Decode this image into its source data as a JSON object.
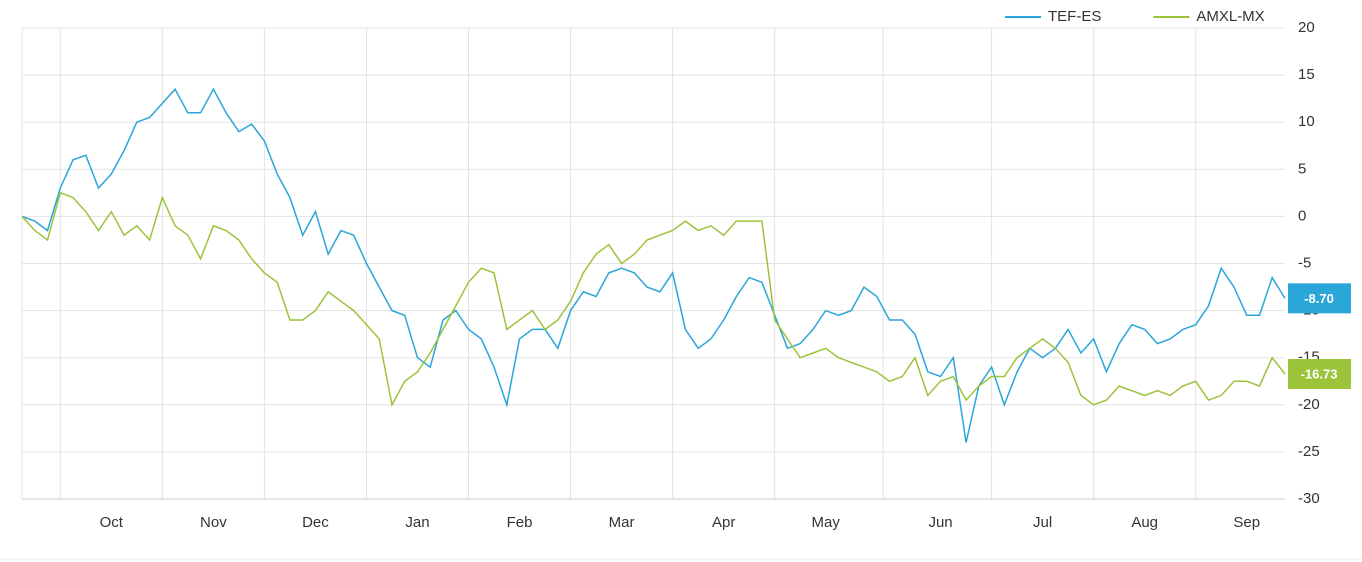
{
  "chart_data": {
    "type": "line",
    "categories": [
      null,
      null,
      null,
      null,
      null,
      null,
      null,
      "Oct",
      null,
      null,
      null,
      null,
      null,
      null,
      null,
      "Nov",
      null,
      null,
      null,
      null,
      null,
      null,
      null,
      "Dec",
      null,
      null,
      null,
      null,
      null,
      null,
      null,
      "Jan",
      null,
      null,
      null,
      null,
      null,
      null,
      null,
      "Feb",
      null,
      null,
      null,
      null,
      null,
      null,
      null,
      "Mar",
      null,
      null,
      null,
      null,
      null,
      null,
      null,
      "Apr",
      null,
      null,
      null,
      null,
      null,
      null,
      null,
      "May",
      null,
      null,
      null,
      null,
      null,
      null,
      null,
      null,
      "Jun",
      null,
      null,
      null,
      null,
      null,
      null,
      null,
      "Jul",
      null,
      null,
      null,
      null,
      null,
      null,
      null,
      "Aug",
      null,
      null,
      null,
      null,
      null,
      null,
      null,
      "Sep",
      null,
      null,
      null
    ],
    "series": [
      {
        "name": "TEF-ES",
        "color": "#2ba6d9",
        "values": [
          0,
          -0.5,
          -1.5,
          3,
          6,
          6.5,
          3,
          4.5,
          7,
          10,
          10.5,
          12,
          13.5,
          11,
          11,
          13.5,
          11,
          9,
          9.8,
          8,
          4.5,
          2,
          -2,
          0.5,
          -4,
          -1.5,
          -2,
          -5,
          -7.5,
          -10,
          -10.5,
          -15,
          -16,
          -11,
          -10,
          -12,
          -13,
          -16,
          -20,
          -13,
          -12,
          -12,
          -14,
          -10,
          -8,
          -8.5,
          -6,
          -5.5,
          -6,
          -7.5,
          -8,
          -6,
          -12,
          -14,
          -13,
          -11,
          -8.5,
          -6.5,
          -7,
          -10.5,
          -14,
          -13.5,
          -12,
          -10,
          -10.5,
          -10,
          -7.5,
          -8.5,
          -11,
          -11,
          -12.5,
          -16.5,
          -17,
          -15,
          -24,
          -18,
          -16,
          -20,
          -16.5,
          -14,
          -15,
          -14,
          -12,
          -14.5,
          -13,
          -16.5,
          -13.5,
          -11.5,
          -12,
          -13.5,
          -13,
          -12,
          -11.5,
          -9.5,
          -5.5,
          -7.5,
          -10.5,
          -10.5,
          -6.5,
          -8.7
        ],
        "value_labels": [
          null,
          null,
          null,
          null,
          null,
          null,
          null,
          null,
          null,
          null,
          null,
          null,
          null,
          null,
          null,
          null,
          null,
          null,
          null,
          null,
          null,
          null,
          null,
          null,
          null,
          null,
          null,
          null,
          null,
          null,
          null,
          null,
          null,
          null,
          null,
          null,
          null,
          null,
          null,
          null,
          null,
          null,
          null,
          null,
          null,
          null,
          null,
          null,
          null,
          null,
          null,
          null,
          null,
          null,
          null,
          null,
          null,
          null,
          null,
          null,
          null,
          null,
          null,
          null,
          null,
          null,
          null,
          null,
          null,
          null,
          null,
          null,
          null,
          null,
          null,
          null,
          null,
          null,
          null,
          null,
          null,
          null,
          null,
          null,
          null,
          null,
          null,
          null,
          null,
          null,
          null,
          null,
          null,
          null,
          null,
          null,
          null,
          null,
          null,
          "-8.70"
        ]
      },
      {
        "name": "AMXL-MX",
        "color": "#9bc43b",
        "values": [
          0,
          -1.5,
          -2.5,
          2.5,
          2,
          0.5,
          -1.5,
          0.5,
          -2,
          -1,
          -2.5,
          2,
          -1,
          -2,
          -4.5,
          -1,
          -1.5,
          -2.5,
          -4.5,
          -6,
          -7,
          -11,
          -11,
          -10,
          -8,
          -9,
          -10,
          -11.5,
          -13,
          -20,
          -17.5,
          -16.5,
          -14.5,
          -12,
          -9.5,
          -7,
          -5.5,
          -6,
          -12,
          -11,
          -10,
          -12,
          -11,
          -9,
          -6,
          -4,
          -3,
          -5,
          -4,
          -2.5,
          -2,
          -1.5,
          -0.5,
          -1.5,
          -1,
          -2,
          -0.5,
          -0.5,
          -0.5,
          -11,
          -13,
          -15,
          -14.5,
          -14,
          -15,
          -15.5,
          -16,
          -16.5,
          -17.5,
          -17,
          -15,
          -19,
          -17.5,
          -17,
          -19.5,
          -18,
          -17,
          -17,
          -15,
          -14,
          -13,
          -14,
          -15.5,
          -19,
          -20,
          -19.5,
          -18,
          -18.5,
          -19,
          -18.5,
          -19,
          -18,
          -17.5,
          -19.5,
          -19,
          -17.5,
          -17.5,
          -18,
          -15,
          -16.73
        ],
        "value_labels": [
          null,
          null,
          null,
          null,
          null,
          null,
          null,
          null,
          null,
          null,
          null,
          null,
          null,
          null,
          null,
          null,
          null,
          null,
          null,
          null,
          null,
          null,
          null,
          null,
          null,
          null,
          null,
          null,
          null,
          null,
          null,
          null,
          null,
          null,
          null,
          null,
          null,
          null,
          null,
          null,
          null,
          null,
          null,
          null,
          null,
          null,
          null,
          null,
          null,
          null,
          null,
          null,
          null,
          null,
          null,
          null,
          null,
          null,
          null,
          null,
          null,
          null,
          null,
          null,
          null,
          null,
          null,
          null,
          null,
          null,
          null,
          null,
          null,
          null,
          null,
          null,
          null,
          null,
          null,
          null,
          null,
          null,
          null,
          null,
          null,
          null,
          null,
          null,
          null,
          null,
          null,
          null,
          null,
          null,
          null,
          null,
          null,
          null,
          null,
          "-16.73"
        ]
      }
    ],
    "ylim": [
      -30,
      20
    ],
    "yticks": [
      20,
      15,
      10,
      5,
      0,
      -5,
      -10,
      -15,
      -20,
      -25,
      -30
    ],
    "grid": true,
    "legend": "top-right"
  }
}
